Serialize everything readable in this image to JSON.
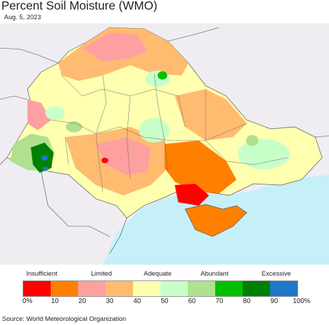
{
  "title": "Percent Soil Moisture (WMO)",
  "date": "Aug. 5, 2023",
  "legend": {
    "categories": [
      "Insufficient",
      "Limited",
      "Adequate",
      "Abundant",
      "Excessive"
    ],
    "ticks": [
      "0%",
      "10",
      "20",
      "30",
      "40",
      "50",
      "60",
      "70",
      "80",
      "90",
      "100%"
    ],
    "colors": [
      "#ff0000",
      "#ff8000",
      "#ffa0a0",
      "#ffbb70",
      "#ffffb0",
      "#c8ffc8",
      "#b0e090",
      "#00c000",
      "#008000",
      "#1e78c8"
    ]
  },
  "source": "Source: World Meteorological Organization"
}
